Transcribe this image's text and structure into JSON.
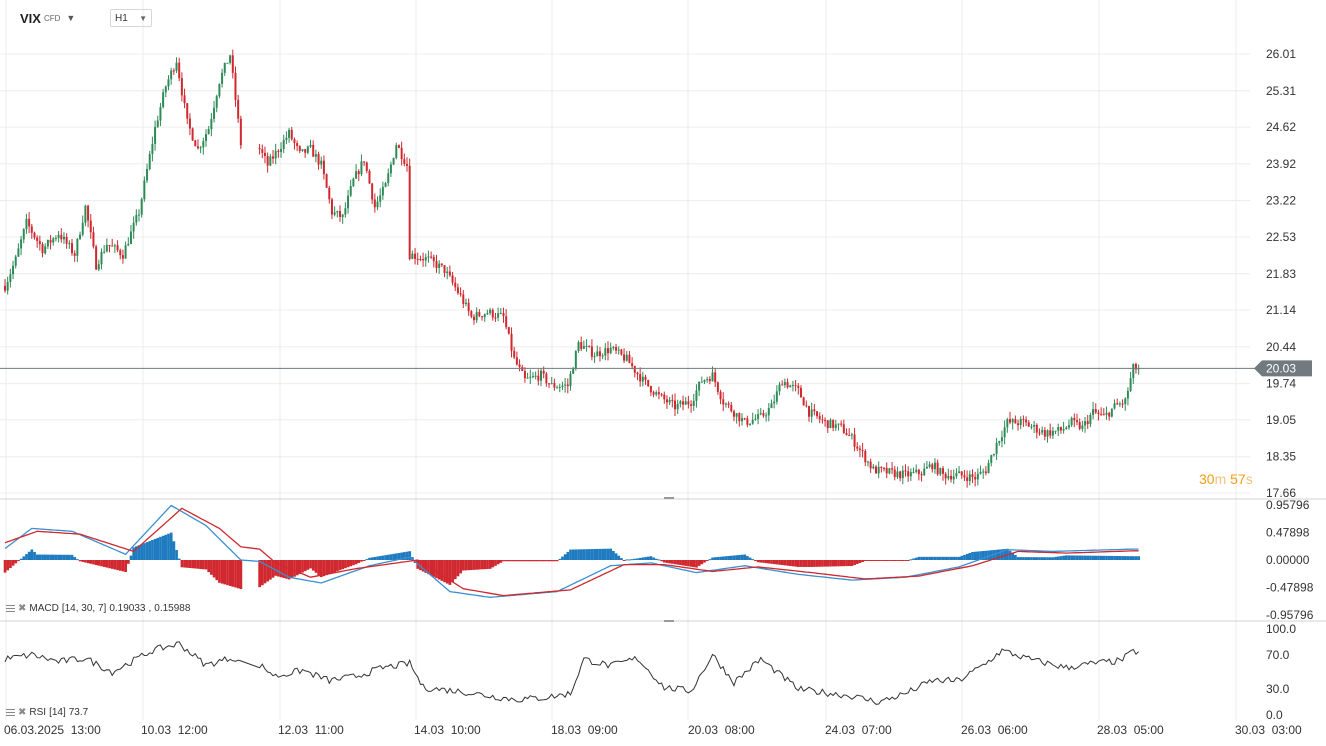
{
  "header": {
    "symbol": "VIX",
    "symbol_tag": "CFD",
    "timeframe": "H1"
  },
  "countdown": {
    "minutes": "30",
    "minutes_unit": "m",
    "seconds": "57",
    "seconds_unit": "s"
  },
  "colors": {
    "bull": "#2e8b57",
    "bear": "#d0282e",
    "grid": "#ececec",
    "price_line": "#707a80",
    "price_label_bg": "#707a80",
    "macd_line": "#3b8fd0",
    "signal_line": "#d0282e",
    "hist_pos": "#1f7bc0",
    "hist_neg": "#d0282e",
    "rsi_line": "#333333",
    "accent": "#f39c12"
  },
  "price_axis": {
    "ticks": [
      "26.01",
      "25.31",
      "24.62",
      "23.92",
      "23.22",
      "22.53",
      "21.83",
      "21.14",
      "20.44",
      "19.74",
      "19.05",
      "18.35",
      "17.66"
    ],
    "current_price": "20.03"
  },
  "macd_axis": {
    "ticks": [
      "0.95796",
      "0.47898",
      "0.00000",
      "-0.47898",
      "-0.95796"
    ]
  },
  "rsi_axis": {
    "ticks": [
      "100.0",
      "70.0",
      "30.0",
      "0.0"
    ]
  },
  "time_axis": {
    "labels": [
      "06.03.2025  13:00",
      "10.03  12:00",
      "12.03  11:00",
      "14.03  10:00",
      "18.03  09:00",
      "20.03  08:00",
      "24.03  07:00",
      "26.03  06:00",
      "28.03  05:00",
      "30.03  03:00"
    ]
  },
  "indicators": {
    "macd": {
      "name": "MACD",
      "params": "[14, 30, 7]",
      "value1": "0.19033",
      "value2": "0.15988"
    },
    "rsi": {
      "name": "RSI",
      "params": "[14]",
      "value": "73.7"
    }
  },
  "chart_data": {
    "type": "candlestick",
    "x_start": "06.03.2025 13:00",
    "timeframe": "H1",
    "ylim": [
      17.66,
      26.01
    ],
    "gap_after_bar": 88,
    "close_path": [
      [
        0,
        21.6
      ],
      [
        4,
        22.1
      ],
      [
        8,
        22.8
      ],
      [
        14,
        22.3
      ],
      [
        20,
        22.6
      ],
      [
        26,
        22.2
      ],
      [
        30,
        23.1
      ],
      [
        34,
        22.0
      ],
      [
        38,
        22.4
      ],
      [
        44,
        22.2
      ],
      [
        50,
        23.0
      ],
      [
        56,
        24.6
      ],
      [
        60,
        25.4
      ],
      [
        64,
        25.9
      ],
      [
        68,
        24.7
      ],
      [
        72,
        24.2
      ],
      [
        76,
        24.6
      ],
      [
        80,
        25.5
      ],
      [
        84,
        26.0
      ],
      [
        88,
        24.3
      ],
      [
        92,
        23.9
      ],
      [
        96,
        24.2
      ],
      [
        100,
        24.5
      ],
      [
        104,
        24.1
      ],
      [
        108,
        24.2
      ],
      [
        112,
        23.9
      ],
      [
        116,
        23.0
      ],
      [
        120,
        22.9
      ],
      [
        124,
        23.6
      ],
      [
        128,
        24.0
      ],
      [
        132,
        23.1
      ],
      [
        136,
        23.5
      ],
      [
        140,
        24.3
      ],
      [
        144,
        23.9
      ],
      [
        145,
        22.2
      ],
      [
        152,
        22.1
      ],
      [
        158,
        21.9
      ],
      [
        164,
        21.4
      ],
      [
        168,
        21.0
      ],
      [
        174,
        21.1
      ],
      [
        180,
        21.0
      ],
      [
        184,
        20.2
      ],
      [
        188,
        19.8
      ],
      [
        194,
        19.9
      ],
      [
        198,
        19.7
      ],
      [
        204,
        19.7
      ],
      [
        208,
        20.5
      ],
      [
        214,
        20.3
      ],
      [
        220,
        20.4
      ],
      [
        226,
        20.2
      ],
      [
        232,
        19.8
      ],
      [
        238,
        19.5
      ],
      [
        244,
        19.3
      ],
      [
        250,
        19.4
      ],
      [
        254,
        19.8
      ],
      [
        258,
        19.9
      ],
      [
        262,
        19.4
      ],
      [
        266,
        19.2
      ],
      [
        270,
        19.0
      ],
      [
        276,
        19.1
      ],
      [
        280,
        19.3
      ],
      [
        284,
        19.8
      ],
      [
        290,
        19.6
      ],
      [
        294,
        19.2
      ],
      [
        300,
        19.0
      ],
      [
        306,
        18.9
      ],
      [
        310,
        18.7
      ],
      [
        314,
        18.4
      ],
      [
        318,
        18.1
      ],
      [
        324,
        18.05
      ],
      [
        330,
        18.0
      ],
      [
        336,
        18.05
      ],
      [
        340,
        18.2
      ],
      [
        344,
        18.0
      ],
      [
        350,
        18.0
      ],
      [
        356,
        17.95
      ],
      [
        360,
        18.1
      ],
      [
        364,
        18.6
      ],
      [
        368,
        19.0
      ],
      [
        374,
        19.0
      ],
      [
        378,
        18.9
      ],
      [
        382,
        18.8
      ],
      [
        388,
        18.85
      ],
      [
        392,
        19.0
      ],
      [
        396,
        18.9
      ],
      [
        400,
        19.2
      ],
      [
        404,
        19.1
      ],
      [
        408,
        19.3
      ],
      [
        412,
        19.4
      ],
      [
        415,
        20.03
      ]
    ],
    "macd": {
      "macd_path": [
        [
          0,
          0.2
        ],
        [
          10,
          0.55
        ],
        [
          25,
          0.5
        ],
        [
          45,
          0.1
        ],
        [
          62,
          0.95
        ],
        [
          75,
          0.6
        ],
        [
          88,
          0.0
        ],
        [
          100,
          -0.3
        ],
        [
          112,
          -0.4
        ],
        [
          130,
          -0.1
        ],
        [
          145,
          0.05
        ],
        [
          160,
          -0.55
        ],
        [
          175,
          -0.65
        ],
        [
          200,
          -0.55
        ],
        [
          220,
          -0.1
        ],
        [
          235,
          -0.05
        ],
        [
          252,
          -0.22
        ],
        [
          270,
          -0.1
        ],
        [
          290,
          -0.25
        ],
        [
          310,
          -0.35
        ],
        [
          330,
          -0.3
        ],
        [
          350,
          -0.12
        ],
        [
          368,
          0.18
        ],
        [
          385,
          0.15
        ],
        [
          415,
          0.19
        ]
      ],
      "signal_path": [
        [
          0,
          0.3
        ],
        [
          12,
          0.5
        ],
        [
          28,
          0.45
        ],
        [
          48,
          0.15
        ],
        [
          66,
          0.9
        ],
        [
          80,
          0.55
        ],
        [
          95,
          -0.05
        ],
        [
          108,
          -0.3
        ],
        [
          125,
          -0.15
        ],
        [
          148,
          0.0
        ],
        [
          165,
          -0.5
        ],
        [
          180,
          -0.62
        ],
        [
          205,
          -0.52
        ],
        [
          225,
          -0.08
        ],
        [
          240,
          -0.08
        ],
        [
          258,
          -0.2
        ],
        [
          275,
          -0.12
        ],
        [
          295,
          -0.22
        ],
        [
          315,
          -0.33
        ],
        [
          335,
          -0.28
        ],
        [
          355,
          -0.1
        ],
        [
          372,
          0.15
        ],
        [
          390,
          0.12
        ],
        [
          415,
          0.16
        ]
      ]
    },
    "rsi": {
      "path": [
        [
          0,
          65
        ],
        [
          10,
          70
        ],
        [
          20,
          62
        ],
        [
          30,
          66
        ],
        [
          40,
          50
        ],
        [
          55,
          75
        ],
        [
          65,
          83
        ],
        [
          75,
          58
        ],
        [
          85,
          67
        ],
        [
          95,
          45
        ],
        [
          105,
          52
        ],
        [
          115,
          40
        ],
        [
          125,
          45
        ],
        [
          135,
          55
        ],
        [
          145,
          60
        ],
        [
          150,
          32
        ],
        [
          165,
          27
        ],
        [
          175,
          22
        ],
        [
          185,
          18
        ],
        [
          195,
          20
        ],
        [
          205,
          25
        ],
        [
          210,
          65
        ],
        [
          220,
          57
        ],
        [
          230,
          66
        ],
        [
          240,
          32
        ],
        [
          250,
          28
        ],
        [
          258,
          70
        ],
        [
          266,
          38
        ],
        [
          276,
          65
        ],
        [
          290,
          30
        ],
        [
          300,
          26
        ],
        [
          310,
          22
        ],
        [
          320,
          15
        ],
        [
          330,
          25
        ],
        [
          340,
          40
        ],
        [
          350,
          40
        ],
        [
          360,
          60
        ],
        [
          366,
          75
        ],
        [
          376,
          65
        ],
        [
          390,
          55
        ],
        [
          400,
          60
        ],
        [
          410,
          63
        ],
        [
          415,
          73.7
        ]
      ]
    }
  }
}
